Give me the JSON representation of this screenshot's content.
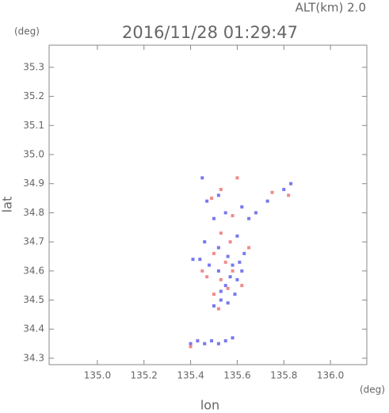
{
  "chart_data": {
    "type": "scatter",
    "title": "2016/11/28 01:29:47",
    "altitude_label": "ALT(km) 2.0",
    "y_unit": "(deg)",
    "x_unit": "(deg)",
    "xlabel": "lon",
    "ylabel": "lat",
    "xlim": [
      134.793,
      136.156
    ],
    "ylim": [
      34.278,
      35.376
    ],
    "xticks": [
      {
        "value": 135.0,
        "label": "135.0"
      },
      135.2,
      135.4,
      135.6,
      135.8,
      {
        "value": 136.0,
        "label": "136.0"
      }
    ],
    "yticks": [
      34.3,
      34.4,
      34.5,
      34.6,
      34.7,
      34.8,
      34.9,
      {
        "value": 35.0,
        "label": "35.0"
      },
      35.1,
      35.2,
      35.3
    ],
    "series": [
      {
        "color": "#7878ee",
        "x": [
          135.4,
          135.43,
          135.46,
          135.49,
          135.52,
          135.55,
          135.58,
          135.5,
          135.53,
          135.56,
          135.59,
          135.55,
          135.6,
          135.62,
          135.58,
          135.52,
          135.48,
          135.44,
          135.56,
          135.63,
          135.52,
          135.46,
          135.6,
          135.5,
          135.55,
          135.47,
          135.52,
          135.62,
          135.68,
          135.73,
          135.8,
          135.83,
          135.45,
          135.65,
          135.57,
          135.53,
          135.61,
          135.41
        ],
        "y": [
          34.35,
          34.36,
          34.35,
          34.36,
          34.35,
          34.36,
          34.37,
          34.48,
          34.5,
          34.49,
          34.52,
          34.55,
          34.57,
          34.6,
          34.62,
          34.6,
          34.62,
          34.64,
          34.65,
          34.66,
          34.68,
          34.7,
          34.72,
          34.78,
          34.8,
          34.84,
          34.86,
          34.82,
          34.8,
          34.84,
          34.88,
          34.9,
          34.92,
          34.78,
          34.58,
          34.53,
          34.63,
          34.64
        ]
      },
      {
        "color": "#f08a8a",
        "x": [
          135.4,
          135.52,
          135.5,
          135.56,
          135.53,
          135.47,
          135.58,
          135.55,
          135.5,
          135.57,
          135.53,
          135.49,
          135.53,
          135.58,
          135.75,
          135.82,
          135.6,
          135.65,
          135.62,
          135.45
        ],
        "y": [
          34.34,
          34.47,
          34.52,
          34.54,
          34.57,
          34.58,
          34.6,
          34.63,
          34.66,
          34.7,
          34.73,
          34.85,
          34.88,
          34.79,
          34.87,
          34.86,
          34.92,
          34.68,
          34.55,
          34.6
        ]
      }
    ]
  }
}
